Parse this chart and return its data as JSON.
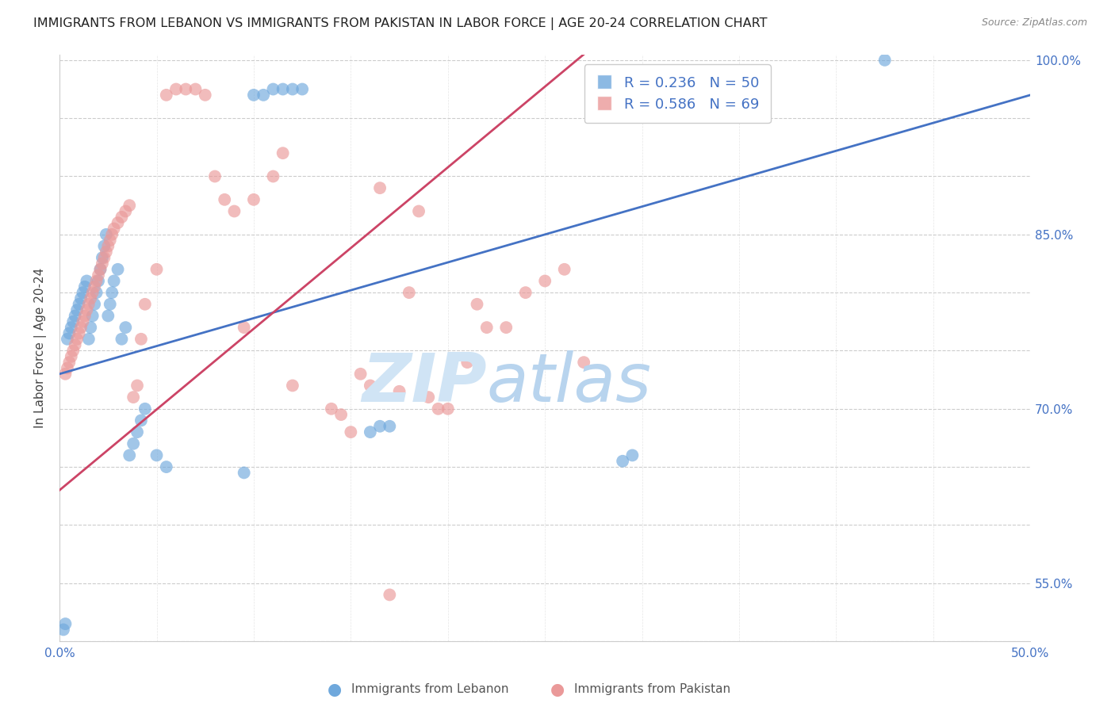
{
  "title": "IMMIGRANTS FROM LEBANON VS IMMIGRANTS FROM PAKISTAN IN LABOR FORCE | AGE 20-24 CORRELATION CHART",
  "source": "Source: ZipAtlas.com",
  "ylabel": "In Labor Force | Age 20-24",
  "x_min": 0.0,
  "x_max": 0.5,
  "y_min": 0.5,
  "y_max": 1.005,
  "lebanon_color": "#6fa8dc",
  "pakistan_color": "#ea9999",
  "lebanon_R": 0.236,
  "lebanon_N": 50,
  "pakistan_R": 0.586,
  "pakistan_N": 69,
  "lebanon_x": [
    0.002,
    0.003,
    0.004,
    0.005,
    0.006,
    0.007,
    0.008,
    0.009,
    0.01,
    0.011,
    0.012,
    0.013,
    0.014,
    0.015,
    0.016,
    0.017,
    0.018,
    0.019,
    0.02,
    0.021,
    0.022,
    0.023,
    0.024,
    0.025,
    0.026,
    0.027,
    0.028,
    0.03,
    0.032,
    0.034,
    0.036,
    0.038,
    0.04,
    0.042,
    0.044,
    0.05,
    0.055,
    0.095,
    0.1,
    0.105,
    0.11,
    0.115,
    0.12,
    0.125,
    0.16,
    0.165,
    0.17,
    0.29,
    0.295,
    0.425
  ],
  "lebanon_y": [
    0.51,
    0.515,
    0.76,
    0.765,
    0.77,
    0.775,
    0.78,
    0.785,
    0.79,
    0.795,
    0.8,
    0.805,
    0.81,
    0.76,
    0.77,
    0.78,
    0.79,
    0.8,
    0.81,
    0.82,
    0.83,
    0.84,
    0.85,
    0.78,
    0.79,
    0.8,
    0.81,
    0.82,
    0.76,
    0.77,
    0.66,
    0.67,
    0.68,
    0.69,
    0.7,
    0.66,
    0.65,
    0.645,
    0.97,
    0.97,
    0.975,
    0.975,
    0.975,
    0.975,
    0.68,
    0.685,
    0.685,
    0.655,
    0.66,
    1.0
  ],
  "pakistan_x": [
    0.003,
    0.004,
    0.005,
    0.006,
    0.007,
    0.008,
    0.009,
    0.01,
    0.011,
    0.012,
    0.013,
    0.014,
    0.015,
    0.016,
    0.017,
    0.018,
    0.019,
    0.02,
    0.021,
    0.022,
    0.023,
    0.024,
    0.025,
    0.026,
    0.027,
    0.028,
    0.03,
    0.032,
    0.034,
    0.036,
    0.038,
    0.04,
    0.042,
    0.044,
    0.05,
    0.055,
    0.06,
    0.065,
    0.07,
    0.075,
    0.08,
    0.085,
    0.09,
    0.095,
    0.1,
    0.11,
    0.115,
    0.12,
    0.14,
    0.145,
    0.15,
    0.155,
    0.16,
    0.165,
    0.17,
    0.175,
    0.18,
    0.185,
    0.19,
    0.195,
    0.2,
    0.21,
    0.215,
    0.22,
    0.23,
    0.24,
    0.25,
    0.26,
    0.27
  ],
  "pakistan_y": [
    0.73,
    0.735,
    0.74,
    0.745,
    0.75,
    0.755,
    0.76,
    0.765,
    0.77,
    0.775,
    0.78,
    0.785,
    0.79,
    0.795,
    0.8,
    0.805,
    0.81,
    0.815,
    0.82,
    0.825,
    0.83,
    0.835,
    0.84,
    0.845,
    0.85,
    0.855,
    0.86,
    0.865,
    0.87,
    0.875,
    0.71,
    0.72,
    0.76,
    0.79,
    0.82,
    0.97,
    0.975,
    0.975,
    0.975,
    0.97,
    0.9,
    0.88,
    0.87,
    0.77,
    0.88,
    0.9,
    0.92,
    0.72,
    0.7,
    0.695,
    0.68,
    0.73,
    0.72,
    0.89,
    0.54,
    0.715,
    0.8,
    0.87,
    0.71,
    0.7,
    0.7,
    0.74,
    0.79,
    0.77,
    0.77,
    0.8,
    0.81,
    0.82,
    0.74
  ],
  "x_tick_positions": [
    0.0,
    0.05,
    0.1,
    0.15,
    0.2,
    0.25,
    0.3,
    0.35,
    0.4,
    0.45,
    0.5
  ],
  "x_tick_labels": [
    "0.0%",
    "",
    "",
    "",
    "",
    "",
    "",
    "",
    "",
    "",
    "50.0%"
  ],
  "y_tick_positions": [
    0.5,
    0.55,
    0.6,
    0.65,
    0.7,
    0.75,
    0.8,
    0.85,
    0.9,
    0.95,
    1.0
  ],
  "y_tick_labels_right": [
    "",
    "55.0%",
    "",
    "",
    "70.0%",
    "",
    "",
    "85.0%",
    "",
    "",
    "100.0%"
  ],
  "watermark_zip": "ZIP",
  "watermark_atlas": "atlas",
  "trendline_leb_color": "#4472c4",
  "trendline_pak_color": "#cc4466",
  "grid_color": "#cccccc",
  "title_color": "#222222",
  "axis_label_color": "#4472c4",
  "ylabel_color": "#444444",
  "source_color": "#888888"
}
